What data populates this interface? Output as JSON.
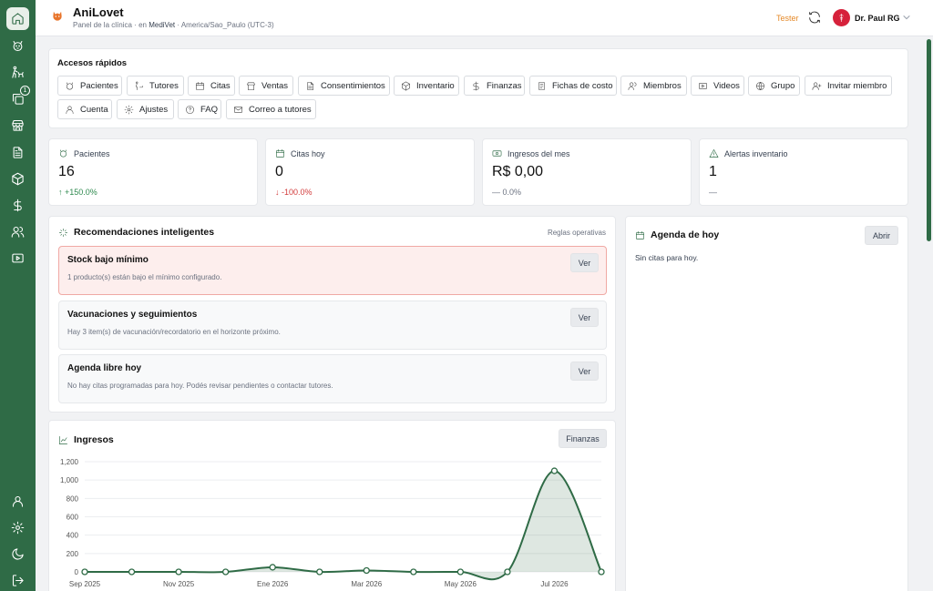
{
  "app": {
    "title": "AniLovet",
    "subtitle_panel": "Panel de la clínica",
    "subtitle_sep1": "·",
    "subtitle_en": "en",
    "clinic": "MediVet",
    "subtitle_sep2": "·",
    "timezone": "America/Sao_Paulo (UTC-3)"
  },
  "header": {
    "env_label": "Tester",
    "user_name": "Dr. Paul RG"
  },
  "sidebar": {
    "items": [
      {
        "name": "home-icon"
      },
      {
        "name": "paw-icon"
      },
      {
        "name": "walk-icon"
      },
      {
        "name": "copy-icon",
        "badge": "1"
      },
      {
        "name": "store-icon"
      },
      {
        "name": "document-icon"
      },
      {
        "name": "box-icon"
      },
      {
        "name": "dollar-icon"
      },
      {
        "name": "users-icon"
      },
      {
        "name": "video-icon"
      }
    ],
    "bottom": [
      {
        "name": "user-icon"
      },
      {
        "name": "gear-icon"
      },
      {
        "name": "moon-icon"
      },
      {
        "name": "logout-icon"
      }
    ]
  },
  "quick_access": {
    "title": "Accesos rápidos",
    "items": [
      {
        "label": "Pacientes",
        "icon": "paw-icon"
      },
      {
        "label": "Tutores",
        "icon": "walk-icon"
      },
      {
        "label": "Citas",
        "icon": "calendar-icon"
      },
      {
        "label": "Ventas",
        "icon": "store-icon"
      },
      {
        "label": "Consentimientos",
        "icon": "document-icon"
      },
      {
        "label": "Inventario",
        "icon": "box-icon"
      },
      {
        "label": "Finanzas",
        "icon": "dollar-icon"
      },
      {
        "label": "Fichas de costo",
        "icon": "file-icon"
      },
      {
        "label": "Miembros",
        "icon": "users-icon"
      },
      {
        "label": "Videos",
        "icon": "video-icon"
      },
      {
        "label": "Grupo",
        "icon": "globe-icon"
      },
      {
        "label": "Invitar miembro",
        "icon": "user-plus-icon"
      },
      {
        "label": "Cuenta",
        "icon": "user-icon"
      },
      {
        "label": "Ajustes",
        "icon": "gear-icon"
      },
      {
        "label": "FAQ",
        "icon": "help-icon"
      },
      {
        "label": "Correo a tutores",
        "icon": "mail-icon"
      }
    ]
  },
  "stats": [
    {
      "label": "Pacientes",
      "value": "16",
      "delta": "↑ +150.0%",
      "trend": "up"
    },
    {
      "label": "Citas hoy",
      "value": "0",
      "delta": "↓ -100.0%",
      "trend": "down"
    },
    {
      "label": "Ingresos del mes",
      "value": "R$ 0,00",
      "delta": "— 0.0%",
      "trend": "flat"
    },
    {
      "label": "Alertas inventario",
      "value": "1",
      "delta": "—",
      "trend": "flat"
    }
  ],
  "recommendations": {
    "title": "Recomendaciones inteligentes",
    "link": "Reglas operativas",
    "items": [
      {
        "title": "Stock bajo mínimo",
        "desc": "1 producto(s) están bajo el mínimo configurado.",
        "button": "Ver",
        "alert": true
      },
      {
        "title": "Vacunaciones y seguimientos",
        "desc": "Hay 3 item(s) de vacunación/recordatorio en el horizonte próximo.",
        "button": "Ver",
        "alert": false
      },
      {
        "title": "Agenda libre hoy",
        "desc": "No hay citas programadas para hoy. Podés revisar pendientes o contactar tutores.",
        "button": "Ver",
        "alert": false
      }
    ]
  },
  "agenda": {
    "title": "Agenda de hoy",
    "button": "Abrir",
    "empty": "Sin citas para hoy."
  },
  "income": {
    "title": "Ingresos",
    "button": "Finanzas"
  },
  "chart_data": {
    "type": "area",
    "title": "Ingresos",
    "xlabel": "",
    "ylabel": "",
    "ylim": [
      0,
      1200
    ],
    "yticks": [
      0,
      200,
      400,
      600,
      800,
      1000,
      1200
    ],
    "ytick_labels": [
      "0",
      "200",
      "400",
      "600",
      "800",
      "1,000",
      "1,200"
    ],
    "xtick_labels": [
      "Sep 2025",
      "Nov 2025",
      "Ene 2026",
      "Mar 2026",
      "May 2026",
      "Jul 2026"
    ],
    "xtick_index": [
      0,
      2,
      4,
      6,
      8,
      10
    ],
    "categories": [
      "Sep 2025",
      "Oct 2025",
      "Nov 2025",
      "Dic 2025",
      "Ene 2026",
      "Feb 2026",
      "Mar 2026",
      "Abr 2026",
      "May 2026",
      "Jun 2026",
      "Jul 2026",
      "Ago 2026"
    ],
    "values": [
      0,
      0,
      0,
      0,
      50,
      0,
      15,
      0,
      0,
      0,
      1100,
      0
    ],
    "grid": true,
    "color": "#2f6b46"
  }
}
